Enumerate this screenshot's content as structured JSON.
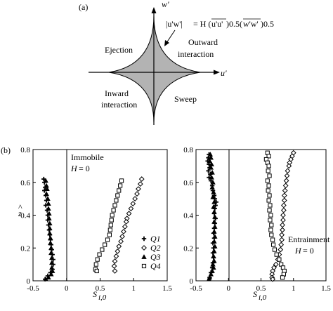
{
  "panel_a": {
    "label": "(a)",
    "y_axis_label": "w'",
    "x_axis_label": "u'",
    "formula_lhs": "|u'w'|",
    "formula_mid": "= H (",
    "formula_uu": "u'u'",
    "formula_pow1": ")0.5(",
    "formula_ww": "w'w'",
    "formula_pow2": ")0.5",
    "quadrants": {
      "q1_name": "Outward interaction",
      "q1_line1": "Outward",
      "q1_line2": "interaction",
      "q2_name": "Ejection",
      "q3_line1": "Inward",
      "q3_line2": "interaction",
      "q4_name": "Sweep"
    },
    "colors": {
      "hole_fill": "#b3b3b3",
      "axis": "#000000"
    }
  },
  "panel_b_label": "(b)",
  "chart_data": [
    {
      "type": "scatter",
      "panel_title": "Immobile",
      "condition": "H = 0",
      "condition_var": "H",
      "condition_val": "= 0",
      "xlabel": "S",
      "xlabel_sub": "i,0",
      "ylabel": "z",
      "ylabel_hat": "^",
      "xlim": [
        -0.5,
        1.5
      ],
      "ylim": [
        0,
        0.8
      ],
      "xticks": [
        "-0.5",
        "0",
        "0.5",
        "1",
        "1.5"
      ],
      "yticks": [
        "0",
        "0.2",
        "0.4",
        "0.6",
        "0.8"
      ],
      "legend_position": "right",
      "series": [
        {
          "name": "Q1",
          "marker": "plus",
          "x": [
            -0.34,
            -0.33,
            -0.32,
            -0.33,
            -0.31,
            -0.3,
            -0.31,
            -0.29,
            -0.28,
            -0.28,
            -0.27,
            -0.26,
            -0.25,
            -0.24,
            -0.23,
            -0.22,
            -0.21,
            -0.2,
            -0.2,
            -0.21,
            -0.24,
            -0.28,
            -0.32
          ],
          "y": [
            0.62,
            0.6,
            0.57,
            0.55,
            0.52,
            0.49,
            0.46,
            0.43,
            0.4,
            0.37,
            0.34,
            0.31,
            0.28,
            0.25,
            0.22,
            0.19,
            0.16,
            0.13,
            0.1,
            0.07,
            0.05,
            0.03,
            0.01
          ]
        },
        {
          "name": "Q2",
          "marker": "diamond",
          "x": [
            1.12,
            1.1,
            1.07,
            1.05,
            1.02,
            0.99,
            0.96,
            0.93,
            0.9,
            0.89,
            0.87,
            0.85,
            0.83,
            0.81,
            0.78,
            0.76,
            0.74,
            0.72,
            0.71,
            0.72
          ],
          "y": [
            0.62,
            0.59,
            0.56,
            0.53,
            0.5,
            0.47,
            0.44,
            0.41,
            0.38,
            0.36,
            0.33,
            0.3,
            0.27,
            0.24,
            0.21,
            0.18,
            0.15,
            0.12,
            0.09,
            0.06
          ]
        },
        {
          "name": "Q3",
          "marker": "triangle",
          "x": [
            -0.31,
            -0.3,
            -0.29,
            -0.3,
            -0.28,
            -0.27,
            -0.27,
            -0.26,
            -0.26,
            -0.25,
            -0.25,
            -0.25,
            -0.24,
            -0.24,
            -0.23,
            -0.23,
            -0.22,
            -0.22,
            -0.22,
            -0.21,
            -0.23,
            -0.27,
            -0.31
          ],
          "y": [
            0.61,
            0.58,
            0.56,
            0.53,
            0.5,
            0.47,
            0.44,
            0.41,
            0.38,
            0.35,
            0.32,
            0.29,
            0.26,
            0.23,
            0.2,
            0.17,
            0.14,
            0.11,
            0.08,
            0.06,
            0.04,
            0.02,
            0.01
          ]
        },
        {
          "name": "Q4",
          "marker": "square",
          "x": [
            0.82,
            0.8,
            0.78,
            0.76,
            0.74,
            0.72,
            0.7,
            0.68,
            0.67,
            0.66,
            0.65,
            0.64,
            0.61,
            0.57,
            0.53,
            0.49,
            0.46,
            0.44,
            0.43,
            0.45
          ],
          "y": [
            0.61,
            0.58,
            0.55,
            0.52,
            0.49,
            0.46,
            0.43,
            0.4,
            0.37,
            0.34,
            0.31,
            0.28,
            0.25,
            0.22,
            0.19,
            0.16,
            0.13,
            0.1,
            0.07,
            0.06
          ]
        }
      ]
    },
    {
      "type": "scatter",
      "panel_title": "Entrainment",
      "condition": "H = 0",
      "condition_var": "H",
      "condition_val": "= 0",
      "xlabel": "S",
      "xlabel_sub": "i,0",
      "ylabel": "z",
      "xlim": [
        -0.5,
        1.5
      ],
      "ylim": [
        0,
        0.8
      ],
      "xticks": [
        "-0.5",
        "0",
        "0.5",
        "1",
        "1.5"
      ],
      "yticks": [
        "0",
        "0.2",
        "0.4",
        "0.6",
        "0.8"
      ],
      "series": [
        {
          "name": "Q1",
          "marker": "plus",
          "x": [
            -0.3,
            -0.31,
            -0.32,
            -0.3,
            -0.29,
            -0.31,
            -0.28,
            -0.3,
            -0.27,
            -0.25,
            -0.24,
            -0.22,
            -0.21,
            -0.19,
            -0.2,
            -0.21,
            -0.22,
            -0.2,
            -0.21,
            -0.22,
            -0.23,
            -0.22,
            -0.24,
            -0.23,
            -0.24,
            -0.23,
            -0.24,
            -0.25,
            -0.27,
            -0.29
          ],
          "y": [
            0.77,
            0.75,
            0.73,
            0.71,
            0.69,
            0.67,
            0.65,
            0.63,
            0.61,
            0.58,
            0.55,
            0.52,
            0.5,
            0.48,
            0.46,
            0.44,
            0.41,
            0.38,
            0.35,
            0.32,
            0.29,
            0.26,
            0.23,
            0.2,
            0.17,
            0.14,
            0.11,
            0.08,
            0.05,
            0.02
          ]
        },
        {
          "name": "Q2",
          "marker": "diamond",
          "x": [
            1.0,
            0.98,
            0.96,
            0.94,
            0.93,
            0.91,
            0.9,
            0.89,
            0.88,
            0.87,
            0.86,
            0.86,
            0.85,
            0.85,
            0.84,
            0.84,
            0.83,
            0.83,
            0.82,
            0.82,
            0.81,
            0.8,
            0.78,
            0.76,
            0.73,
            0.7,
            0.68,
            0.67,
            0.67,
            0.68
          ],
          "y": [
            0.78,
            0.76,
            0.74,
            0.72,
            0.7,
            0.67,
            0.64,
            0.61,
            0.58,
            0.55,
            0.52,
            0.49,
            0.46,
            0.43,
            0.4,
            0.37,
            0.34,
            0.31,
            0.28,
            0.25,
            0.22,
            0.19,
            0.16,
            0.13,
            0.1,
            0.08,
            0.06,
            0.04,
            0.02,
            0.01
          ]
        },
        {
          "name": "Q3",
          "marker": "triangle",
          "x": [
            -0.28,
            -0.27,
            -0.29,
            -0.26,
            -0.27,
            -0.25,
            -0.26,
            -0.24,
            -0.25,
            -0.23,
            -0.24,
            -0.22,
            -0.23,
            -0.22,
            -0.21,
            -0.22,
            -0.21,
            -0.22,
            -0.21,
            -0.22,
            -0.21,
            -0.22,
            -0.23,
            -0.22,
            -0.24,
            -0.23,
            -0.25,
            -0.27,
            -0.29,
            -0.3
          ],
          "y": [
            0.77,
            0.75,
            0.73,
            0.71,
            0.69,
            0.66,
            0.63,
            0.6,
            0.57,
            0.54,
            0.51,
            0.48,
            0.45,
            0.42,
            0.39,
            0.36,
            0.33,
            0.3,
            0.27,
            0.24,
            0.21,
            0.18,
            0.15,
            0.12,
            0.1,
            0.08,
            0.06,
            0.04,
            0.02,
            0.01
          ]
        },
        {
          "name": "Q4",
          "marker": "square",
          "x": [
            0.6,
            0.62,
            0.58,
            0.6,
            0.62,
            0.61,
            0.63,
            0.6,
            0.62,
            0.61,
            0.63,
            0.62,
            0.64,
            0.63,
            0.65,
            0.64,
            0.66,
            0.65,
            0.66,
            0.68,
            0.69,
            0.71,
            0.74,
            0.78,
            0.81,
            0.84,
            0.86,
            0.85,
            0.83
          ],
          "y": [
            0.78,
            0.76,
            0.74,
            0.72,
            0.7,
            0.67,
            0.64,
            0.61,
            0.58,
            0.55,
            0.52,
            0.49,
            0.46,
            0.43,
            0.4,
            0.37,
            0.34,
            0.31,
            0.28,
            0.25,
            0.22,
            0.19,
            0.16,
            0.13,
            0.1,
            0.08,
            0.06,
            0.04,
            0.02
          ]
        }
      ]
    }
  ]
}
